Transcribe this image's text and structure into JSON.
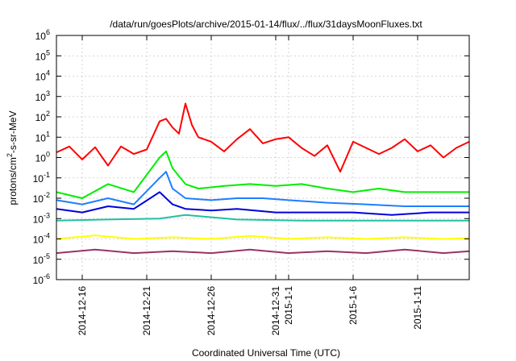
{
  "chart_data": {
    "type": "line",
    "title": "/data/run/goesPlots/archive/2015-01-14/flux/../flux/31daysMoonFluxes.txt",
    "xlabel": "Coordinated Universal Time (UTC)",
    "ylabel": "protons/cm²-s-sr-MeV",
    "y_scale": "log",
    "ylim": [
      1e-06,
      1000000.0
    ],
    "xlim": [
      "2014-12-14",
      "2015-01-15"
    ],
    "grid": true,
    "y_ticks": [
      {
        "base": "10",
        "exp": "-6",
        "value": 1e-06
      },
      {
        "base": "10",
        "exp": "-5",
        "value": 1e-05
      },
      {
        "base": "10",
        "exp": "-4",
        "value": 0.0001
      },
      {
        "base": "10",
        "exp": "-3",
        "value": 0.001
      },
      {
        "base": "10",
        "exp": "-2",
        "value": 0.01
      },
      {
        "base": "10",
        "exp": "-1",
        "value": 0.1
      },
      {
        "base": "10",
        "exp": "0",
        "value": 1
      },
      {
        "base": "10",
        "exp": "1",
        "value": 10
      },
      {
        "base": "10",
        "exp": "2",
        "value": 100
      },
      {
        "base": "10",
        "exp": "3",
        "value": 1000
      },
      {
        "base": "10",
        "exp": "4",
        "value": 10000
      },
      {
        "base": "10",
        "exp": "5",
        "value": 100000
      },
      {
        "base": "10",
        "exp": "6",
        "value": 1000000
      }
    ],
    "x_ticks": [
      {
        "label": "2014-12-16",
        "date": "2014-12-16"
      },
      {
        "label": "2014-12-21",
        "date": "2014-12-21"
      },
      {
        "label": "2014-12-26",
        "date": "2014-12-26"
      },
      {
        "label": "2014-12-31",
        "date": "2014-12-31"
      },
      {
        "label": "2015-1-1",
        "date": "2015-01-01"
      },
      {
        "label": "2015-1-6",
        "date": "2015-01-06"
      },
      {
        "label": "2015-1-11",
        "date": "2015-01-11"
      }
    ],
    "series": [
      {
        "color": "#ff0000",
        "points": [
          [
            "2014-12-14",
            1.8
          ],
          [
            "2014-12-15",
            3.5
          ],
          [
            "2014-12-16",
            0.8
          ],
          [
            "2014-12-17",
            3.2
          ],
          [
            "2014-12-18",
            0.4
          ],
          [
            "2014-12-19",
            3.5
          ],
          [
            "2014-12-20",
            1.5
          ],
          [
            "2014-12-21",
            2.5
          ],
          [
            "2014-12-22",
            60
          ],
          [
            "2014-12-22T12",
            80
          ],
          [
            "2014-12-23",
            30
          ],
          [
            "2014-12-23T12",
            15
          ],
          [
            "2014-12-24",
            450
          ],
          [
            "2014-12-24T12",
            40
          ],
          [
            "2014-12-25",
            10
          ],
          [
            "2014-12-26",
            6
          ],
          [
            "2014-12-27",
            2
          ],
          [
            "2014-12-28",
            8
          ],
          [
            "2014-12-29",
            25
          ],
          [
            "2014-12-30",
            5
          ],
          [
            "2014-12-31",
            8
          ],
          [
            "2015-01-01",
            10
          ],
          [
            "2015-01-02",
            3
          ],
          [
            "2015-01-03",
            1.2
          ],
          [
            "2015-01-04",
            4
          ],
          [
            "2015-01-05",
            0.2
          ],
          [
            "2015-01-06",
            6
          ],
          [
            "2015-01-07",
            3
          ],
          [
            "2015-01-08",
            1.5
          ],
          [
            "2015-01-09",
            3
          ],
          [
            "2015-01-10",
            8
          ],
          [
            "2015-01-11",
            2
          ],
          [
            "2015-01-12",
            4
          ],
          [
            "2015-01-13",
            1
          ],
          [
            "2015-01-14",
            3
          ],
          [
            "2015-01-15",
            6
          ]
        ]
      },
      {
        "color": "#00ee00",
        "points": [
          [
            "2014-12-14",
            0.02
          ],
          [
            "2014-12-16",
            0.01
          ],
          [
            "2014-12-18",
            0.05
          ],
          [
            "2014-12-20",
            0.02
          ],
          [
            "2014-12-22",
            1
          ],
          [
            "2014-12-22T12",
            2
          ],
          [
            "2014-12-23",
            0.3
          ],
          [
            "2014-12-24",
            0.05
          ],
          [
            "2014-12-25",
            0.03
          ],
          [
            "2014-12-27",
            0.04
          ],
          [
            "2014-12-29",
            0.05
          ],
          [
            "2014-12-31",
            0.04
          ],
          [
            "2015-01-02",
            0.05
          ],
          [
            "2015-01-04",
            0.03
          ],
          [
            "2015-01-06",
            0.02
          ],
          [
            "2015-01-08",
            0.03
          ],
          [
            "2015-01-10",
            0.02
          ],
          [
            "2015-01-12",
            0.02
          ],
          [
            "2015-01-15",
            0.02
          ]
        ]
      },
      {
        "color": "#1e7fff",
        "points": [
          [
            "2014-12-14",
            0.008
          ],
          [
            "2014-12-16",
            0.005
          ],
          [
            "2014-12-18",
            0.01
          ],
          [
            "2014-12-20",
            0.005
          ],
          [
            "2014-12-22",
            0.1
          ],
          [
            "2014-12-22T12",
            0.2
          ],
          [
            "2014-12-23",
            0.03
          ],
          [
            "2014-12-24",
            0.01
          ],
          [
            "2014-12-26",
            0.008
          ],
          [
            "2014-12-28",
            0.01
          ],
          [
            "2014-12-30",
            0.01
          ],
          [
            "2015-01-01",
            0.008
          ],
          [
            "2015-01-04",
            0.006
          ],
          [
            "2015-01-07",
            0.005
          ],
          [
            "2015-01-10",
            0.004
          ],
          [
            "2015-01-13",
            0.004
          ],
          [
            "2015-01-15",
            0.004
          ]
        ]
      },
      {
        "color": "#0000dd",
        "points": [
          [
            "2014-12-14",
            0.003
          ],
          [
            "2014-12-16",
            0.002
          ],
          [
            "2014-12-18",
            0.004
          ],
          [
            "2014-12-20",
            0.003
          ],
          [
            "2014-12-22",
            0.02
          ],
          [
            "2014-12-23",
            0.005
          ],
          [
            "2014-12-24",
            0.003
          ],
          [
            "2014-12-26",
            0.0025
          ],
          [
            "2014-12-28",
            0.003
          ],
          [
            "2014-12-31",
            0.002
          ],
          [
            "2015-01-03",
            0.002
          ],
          [
            "2015-01-06",
            0.002
          ],
          [
            "2015-01-09",
            0.0015
          ],
          [
            "2015-01-12",
            0.002
          ],
          [
            "2015-01-15",
            0.002
          ]
        ]
      },
      {
        "color": "#20c0a0",
        "points": [
          [
            "2014-12-14",
            0.0008
          ],
          [
            "2014-12-18",
            0.0009
          ],
          [
            "2014-12-22",
            0.001
          ],
          [
            "2014-12-24",
            0.0015
          ],
          [
            "2014-12-28",
            0.0009
          ],
          [
            "2015-01-02",
            0.0008
          ],
          [
            "2015-01-08",
            0.0008
          ],
          [
            "2015-01-15",
            0.0008
          ]
        ]
      },
      {
        "color": "#ffff00",
        "points": [
          [
            "2014-12-14",
            0.0001
          ],
          [
            "2014-12-17",
            0.00015
          ],
          [
            "2014-12-20",
            0.0001
          ],
          [
            "2014-12-23",
            0.00012
          ],
          [
            "2014-12-26",
            0.0001
          ],
          [
            "2014-12-29",
            0.00014
          ],
          [
            "2015-01-01",
            0.0001
          ],
          [
            "2015-01-04",
            0.00012
          ],
          [
            "2015-01-07",
            0.0001
          ],
          [
            "2015-01-10",
            0.00012
          ],
          [
            "2015-01-13",
            0.0001
          ],
          [
            "2015-01-15",
            0.00011
          ]
        ]
      },
      {
        "color": "#993366",
        "points": [
          [
            "2014-12-14",
            2e-05
          ],
          [
            "2014-12-17",
            3e-05
          ],
          [
            "2014-12-20",
            2e-05
          ],
          [
            "2014-12-23",
            2.5e-05
          ],
          [
            "2014-12-26",
            2e-05
          ],
          [
            "2014-12-29",
            3e-05
          ],
          [
            "2015-01-01",
            2e-05
          ],
          [
            "2015-01-04",
            2.5e-05
          ],
          [
            "2015-01-07",
            2e-05
          ],
          [
            "2015-01-10",
            3e-05
          ],
          [
            "2015-01-13",
            2e-05
          ],
          [
            "2015-01-15",
            2.5e-05
          ]
        ]
      }
    ]
  }
}
